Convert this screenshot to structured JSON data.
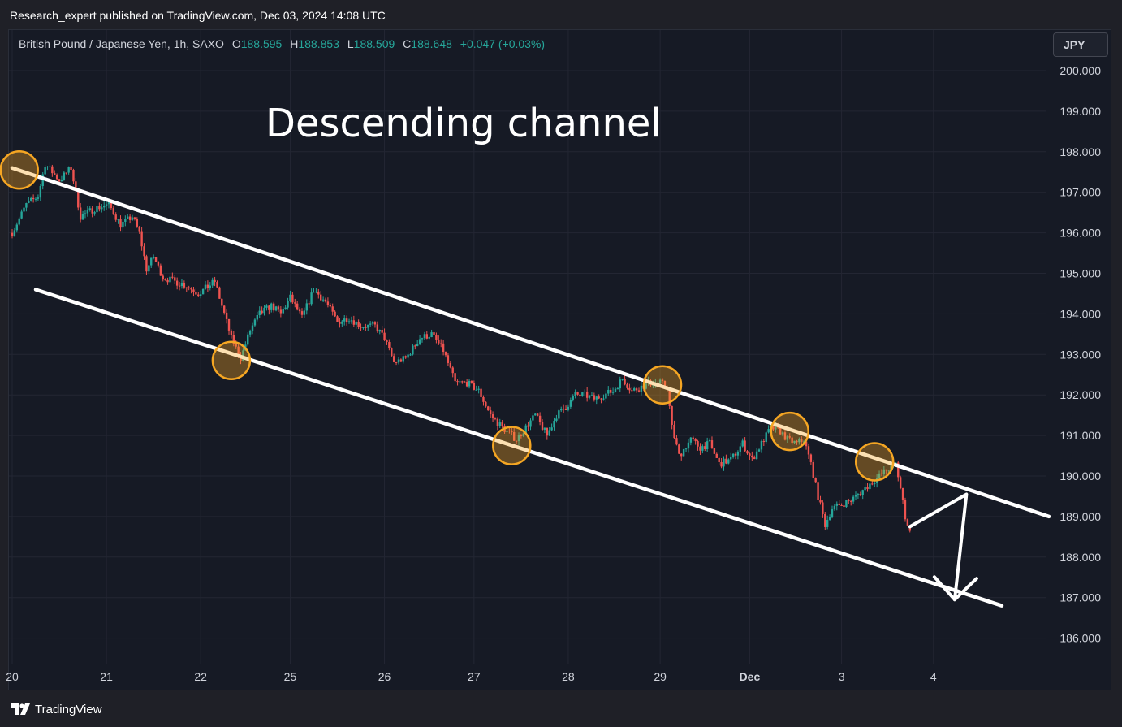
{
  "header": {
    "publisher": "Research_expert published on TradingView.com, Dec 03, 2024 14:08 UTC"
  },
  "legend": {
    "symbol": "British Pound / Japanese Yen, 1h, SAXO",
    "o_label": "O",
    "o_value": "188.595",
    "h_label": "H",
    "h_value": "188.853",
    "l_label": "L",
    "l_value": "188.509",
    "c_label": "C",
    "c_value": "188.648",
    "change": "+0.047 (+0.03%)"
  },
  "currency_button": "JPY",
  "footer": {
    "brand": "TradingView"
  },
  "colors": {
    "background": "#161a25",
    "up": "#26a69a",
    "down": "#ef5350",
    "channel_lines": "#ffffff",
    "touch_markers": "#f5a623"
  },
  "chart_data": {
    "type": "candlestick",
    "title": "Descending channel",
    "interval": "1h",
    "currency": "JPY",
    "ylim": [
      185.6,
      201.0
    ],
    "y_ticks": [
      "200.000",
      "199.000",
      "198.000",
      "197.000",
      "196.000",
      "195.000",
      "194.000",
      "193.000",
      "192.000",
      "191.000",
      "190.000",
      "189.000",
      "188.000",
      "187.000",
      "186.000"
    ],
    "x_ticks": [
      "20",
      "21",
      "22",
      "25",
      "26",
      "27",
      "28",
      "29",
      "Dec",
      "3",
      "4"
    ],
    "price_path": [
      [
        0,
        196.0
      ],
      [
        6,
        196.7
      ],
      [
        11,
        196.9
      ],
      [
        14,
        197.7
      ],
      [
        20,
        197.3
      ],
      [
        25,
        197.6
      ],
      [
        27,
        197.0
      ],
      [
        29,
        196.4
      ],
      [
        35,
        196.6
      ],
      [
        41,
        196.7
      ],
      [
        46,
        196.2
      ],
      [
        51,
        196.4
      ],
      [
        54,
        196.0
      ],
      [
        57,
        195.1
      ],
      [
        60,
        195.4
      ],
      [
        64,
        194.9
      ],
      [
        69,
        194.8
      ],
      [
        74,
        194.7
      ],
      [
        79,
        194.5
      ],
      [
        86,
        194.8
      ],
      [
        90,
        194.0
      ],
      [
        93,
        193.4
      ],
      [
        97,
        192.9
      ],
      [
        101,
        193.6
      ],
      [
        105,
        194.0
      ],
      [
        110,
        194.2
      ],
      [
        114,
        194.0
      ],
      [
        118,
        194.4
      ],
      [
        123,
        193.9
      ],
      [
        128,
        194.6
      ],
      [
        133,
        194.3
      ],
      [
        138,
        193.8
      ],
      [
        143,
        193.9
      ],
      [
        148,
        193.7
      ],
      [
        154,
        193.7
      ],
      [
        158,
        193.4
      ],
      [
        162,
        192.8
      ],
      [
        167,
        192.9
      ],
      [
        173,
        193.4
      ],
      [
        178,
        193.5
      ],
      [
        183,
        193.1
      ],
      [
        188,
        192.3
      ],
      [
        193,
        192.3
      ],
      [
        198,
        192.1
      ],
      [
        203,
        191.5
      ],
      [
        208,
        191.2
      ],
      [
        214,
        190.9
      ],
      [
        218,
        191.2
      ],
      [
        222,
        191.5
      ],
      [
        227,
        191.0
      ],
      [
        231,
        191.5
      ],
      [
        235,
        191.7
      ],
      [
        239,
        192.0
      ],
      [
        243,
        192.0
      ],
      [
        247,
        191.9
      ],
      [
        251,
        192.0
      ],
      [
        255,
        192.1
      ],
      [
        259,
        192.4
      ],
      [
        263,
        192.1
      ],
      [
        267,
        192.2
      ],
      [
        271,
        192.3
      ],
      [
        275,
        192.3
      ],
      [
        278,
        192.2
      ],
      [
        280,
        191.2
      ],
      [
        283,
        190.5
      ],
      [
        288,
        190.9
      ],
      [
        292,
        190.7
      ],
      [
        296,
        190.8
      ],
      [
        300,
        190.3
      ],
      [
        305,
        190.4
      ],
      [
        310,
        190.8
      ],
      [
        314,
        190.4
      ],
      [
        318,
        190.8
      ],
      [
        322,
        191.2
      ],
      [
        326,
        191.1
      ],
      [
        329,
        190.9
      ],
      [
        333,
        190.8
      ],
      [
        336,
        190.9
      ],
      [
        339,
        190.3
      ],
      [
        342,
        189.5
      ],
      [
        345,
        188.8
      ],
      [
        348,
        189.2
      ],
      [
        352,
        189.3
      ],
      [
        356,
        189.4
      ],
      [
        360,
        189.6
      ],
      [
        364,
        189.8
      ],
      [
        368,
        190.0
      ],
      [
        372,
        190.2
      ],
      [
        375,
        190.3
      ],
      [
        377,
        189.7
      ],
      [
        379,
        189.0
      ],
      [
        381,
        188.65
      ]
    ],
    "candle_count": 382,
    "future_bars": 58,
    "channel": {
      "upper": [
        [
          0,
          197.6
        ],
        [
          440,
          189.0
        ]
      ],
      "lower": [
        [
          10,
          194.6
        ],
        [
          420,
          186.8
        ]
      ]
    },
    "touch_points": [
      [
        3,
        197.55
      ],
      [
        93,
        192.85
      ],
      [
        212,
        190.75
      ],
      [
        276,
        192.25
      ],
      [
        330,
        191.1
      ],
      [
        366,
        190.35
      ]
    ],
    "projection_arrow": {
      "start": [
        381,
        188.75
      ],
      "peak": [
        405,
        189.55
      ],
      "end": [
        400,
        186.95
      ]
    },
    "grid": true
  }
}
